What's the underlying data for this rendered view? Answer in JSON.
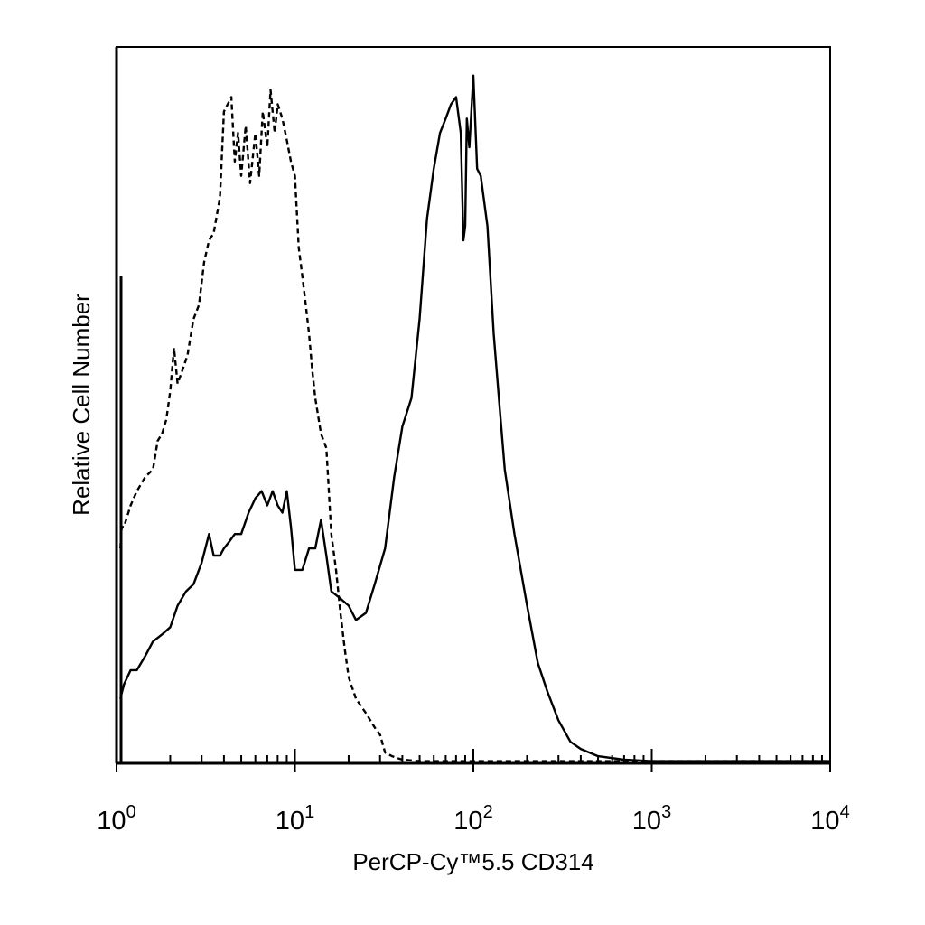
{
  "chart_data": {
    "type": "line",
    "xlabel": "PerCP-Cy™5.5 CD314",
    "ylabel": "Relative Cell Number",
    "x_scale": "log",
    "xlim": [
      1,
      10000
    ],
    "ylim": [
      0,
      100
    ],
    "grid": false,
    "legend": "none",
    "x_ticks": [
      {
        "base": "10",
        "exp": "0",
        "value": 1
      },
      {
        "base": "10",
        "exp": "1",
        "value": 10
      },
      {
        "base": "10",
        "exp": "2",
        "value": 100
      },
      {
        "base": "10",
        "exp": "3",
        "value": 1000
      },
      {
        "base": "10",
        "exp": "4",
        "value": 10000
      }
    ],
    "series": [
      {
        "style": "dashed",
        "x": [
          1.05,
          1.07,
          1.1,
          1.2,
          1.3,
          1.45,
          1.6,
          1.7,
          1.8,
          1.9,
          2.0,
          2.1,
          2.2,
          2.35,
          2.5,
          2.7,
          2.9,
          3.1,
          3.3,
          3.5,
          3.8,
          4.0,
          4.2,
          4.4,
          4.6,
          4.8,
          5.0,
          5.3,
          5.6,
          6.0,
          6.3,
          6.6,
          7.0,
          7.3,
          7.7,
          8.0,
          8.5,
          9.0,
          9.5,
          10,
          10.5,
          11,
          11.5,
          12,
          12.5,
          13,
          14,
          15,
          16,
          17,
          18,
          19,
          20,
          22,
          25,
          28,
          30,
          32,
          35,
          40,
          50,
          80,
          200,
          500,
          10000
        ],
        "y": [
          30,
          33,
          33,
          36,
          38,
          40,
          41,
          45,
          46,
          48,
          52,
          58,
          53,
          55,
          57,
          62,
          64,
          70,
          73,
          74,
          79,
          91,
          92,
          93,
          84,
          88,
          82,
          89,
          81,
          88,
          82,
          91,
          86,
          94,
          88,
          92,
          90,
          87,
          84,
          82,
          72,
          68,
          64,
          60,
          55,
          51,
          46,
          44,
          32,
          27,
          21,
          16,
          12,
          9,
          7,
          5,
          4,
          1.5,
          1,
          0.5,
          0.3,
          0.3,
          0.3,
          0.3,
          0.3
        ]
      },
      {
        "style": "solid",
        "x": [
          1.05,
          1.1,
          1.2,
          1.3,
          1.45,
          1.6,
          1.8,
          2.0,
          2.2,
          2.45,
          2.7,
          3.0,
          3.3,
          3.5,
          3.8,
          4.0,
          4.3,
          4.6,
          5.0,
          5.5,
          6.0,
          6.5,
          7.0,
          7.5,
          8.0,
          8.5,
          9.0,
          9.5,
          10,
          10.5,
          11,
          12,
          13,
          14,
          15,
          16,
          18,
          20,
          22,
          25,
          28,
          32,
          36,
          40,
          45,
          50,
          55,
          60,
          65,
          70,
          75,
          80,
          85,
          88,
          90,
          92,
          95,
          100,
          105,
          110,
          120,
          130,
          140,
          150,
          170,
          200,
          230,
          260,
          300,
          350,
          400,
          500,
          700,
          1000,
          10000
        ],
        "y": [
          9,
          11,
          13,
          13,
          15,
          17,
          18,
          19,
          22,
          24,
          25,
          28,
          32,
          29,
          29,
          30,
          31,
          32,
          32,
          35,
          37,
          38,
          36,
          38,
          36,
          35,
          38,
          33,
          27,
          27,
          27,
          30,
          30,
          34,
          29,
          24,
          23,
          22,
          20,
          21,
          25,
          30,
          40,
          47,
          51,
          62,
          76,
          83,
          88,
          90,
          92,
          93,
          88,
          73,
          75,
          90,
          86,
          96,
          83,
          82,
          75,
          60,
          50,
          41,
          32,
          22,
          14,
          10,
          6,
          3,
          2,
          1,
          0.5,
          0.3,
          0.3
        ]
      }
    ]
  }
}
